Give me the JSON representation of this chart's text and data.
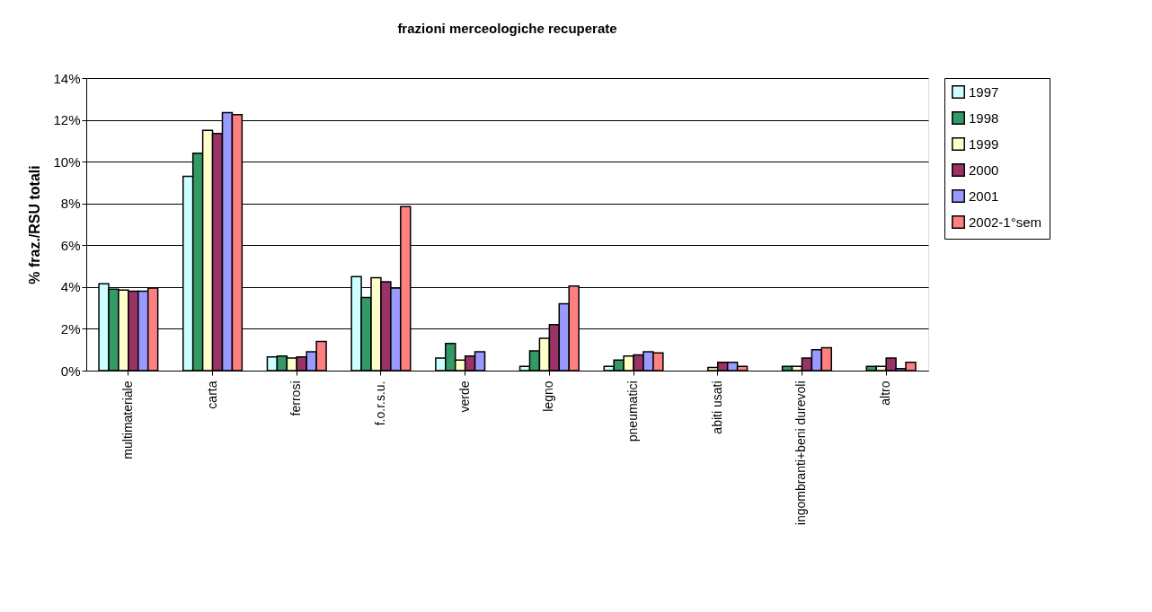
{
  "chart_data": {
    "type": "bar",
    "title": "frazioni merceologiche recuperate",
    "ylabel": "% fraz./RSU totali",
    "categories": [
      "multimateriale",
      "carta",
      "ferrosi",
      "f.o.r.s.u.",
      "verde",
      "legno",
      "pneumatici",
      "abiti usati",
      "ingombranti+beni durevoli",
      "altro"
    ],
    "series": [
      {
        "name": "1997",
        "color": "#ccffff",
        "values": [
          4.15,
          9.3,
          0.65,
          4.5,
          0.6,
          0.2,
          0.2,
          null,
          null,
          null
        ]
      },
      {
        "name": "1998",
        "color": "#339966",
        "values": [
          3.9,
          10.4,
          0.7,
          3.5,
          1.3,
          0.95,
          0.5,
          null,
          0.2,
          0.2
        ]
      },
      {
        "name": "1999",
        "color": "#ffffcc",
        "values": [
          3.85,
          11.5,
          0.6,
          4.45,
          0.5,
          1.55,
          0.7,
          0.15,
          0.2,
          0.2
        ]
      },
      {
        "name": "2000",
        "color": "#993366",
        "values": [
          3.8,
          11.35,
          0.65,
          4.25,
          0.7,
          2.2,
          0.75,
          0.4,
          0.6,
          0.6
        ]
      },
      {
        "name": "2001",
        "color": "#9999ff",
        "values": [
          3.8,
          12.35,
          0.9,
          3.95,
          0.9,
          3.2,
          0.9,
          0.4,
          1.0,
          0.1
        ]
      },
      {
        "name": "2002-1°sem",
        "color": "#ff8080",
        "values": [
          3.95,
          12.25,
          1.4,
          7.85,
          null,
          4.05,
          0.85,
          0.2,
          1.1,
          0.4
        ]
      }
    ],
    "ylim": [
      0,
      14
    ],
    "yticks": [
      {
        "value": 0,
        "label": "0%"
      },
      {
        "value": 2,
        "label": "2%"
      },
      {
        "value": 4,
        "label": "4%"
      },
      {
        "value": 6,
        "label": "6%"
      },
      {
        "value": 8,
        "label": "8%"
      },
      {
        "value": 10,
        "label": "10%"
      },
      {
        "value": 12,
        "label": "12%"
      },
      {
        "value": 14,
        "label": "14%"
      }
    ],
    "grid": "y",
    "legend": "right"
  }
}
